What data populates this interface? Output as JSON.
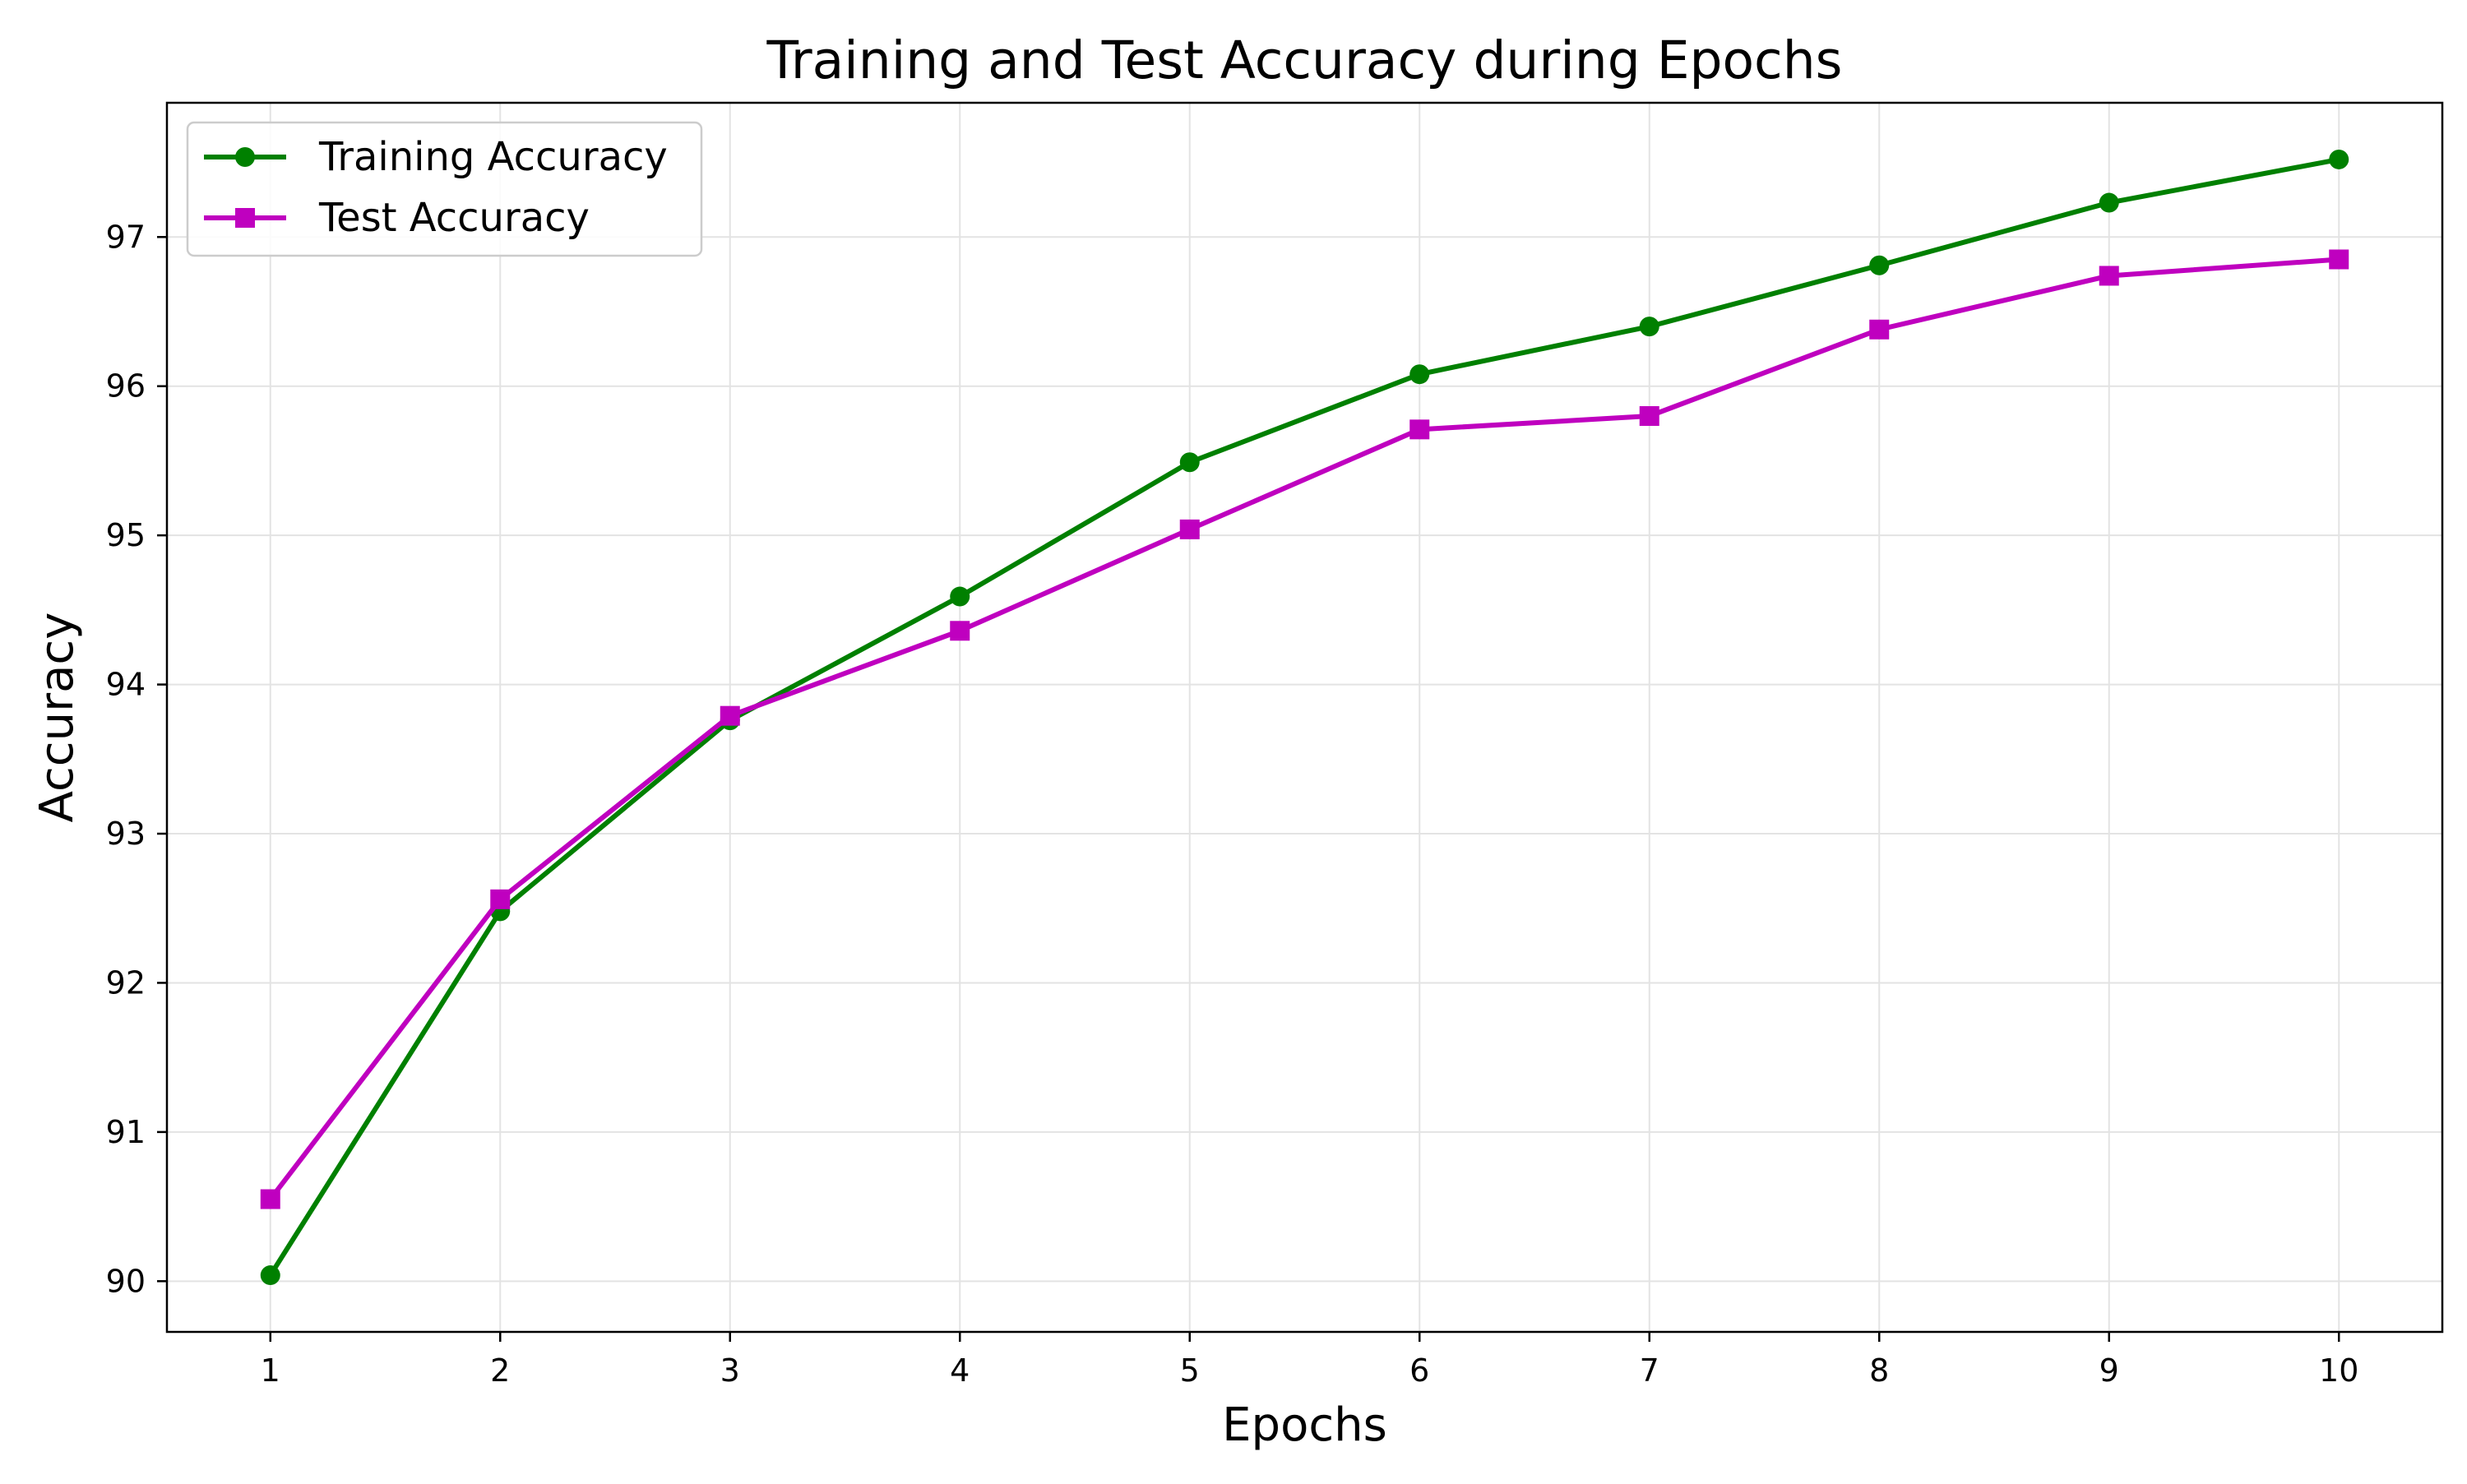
{
  "chart_data": {
    "type": "line",
    "title": "Training and Test Accuracy during Epochs",
    "xlabel": "Epochs",
    "ylabel": "Accuracy",
    "x": [
      1,
      2,
      3,
      4,
      5,
      6,
      7,
      8,
      9,
      10
    ],
    "xlim": [
      0.55,
      10.45
    ],
    "ylim": [
      89.66,
      97.9
    ],
    "yticks": [
      90,
      91,
      92,
      93,
      94,
      95,
      96,
      97
    ],
    "grid": true,
    "legend_position": "top-left",
    "series": [
      {
        "name": "Training Accuracy",
        "color": "#008000",
        "marker": "circle",
        "values": [
          90.04,
          92.48,
          93.76,
          94.59,
          95.49,
          96.08,
          96.4,
          96.81,
          97.23,
          97.52
        ]
      },
      {
        "name": "Test Accuracy",
        "color": "#BF00BF",
        "marker": "square",
        "values": [
          90.55,
          92.56,
          93.79,
          94.36,
          95.04,
          95.71,
          95.8,
          96.38,
          96.74,
          96.85
        ]
      }
    ]
  }
}
